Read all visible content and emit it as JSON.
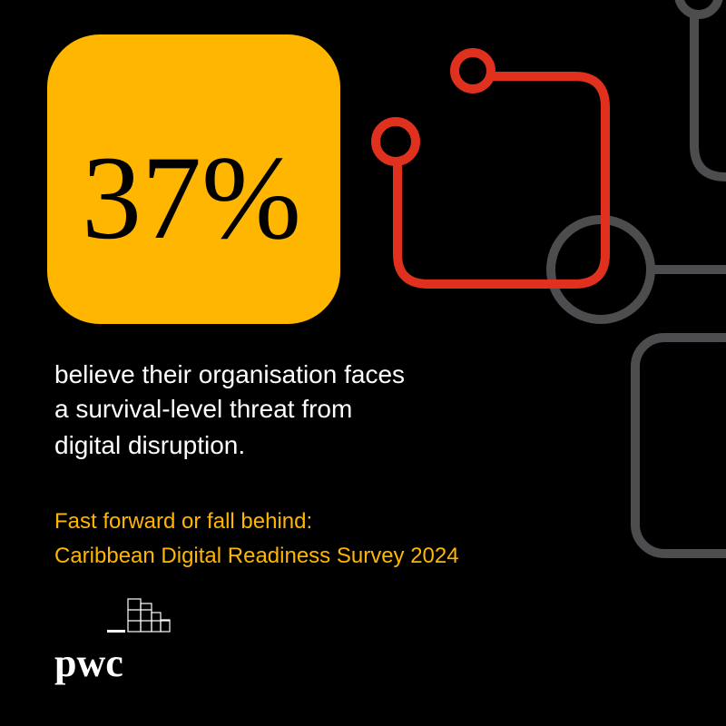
{
  "stat": "37%",
  "description": [
    "believe their organisation faces",
    "a survival-level threat from",
    "digital disruption."
  ],
  "survey": [
    "Fast forward or fall behind:",
    "Caribbean Digital Readiness Survey 2024"
  ],
  "logo": "pwc"
}
